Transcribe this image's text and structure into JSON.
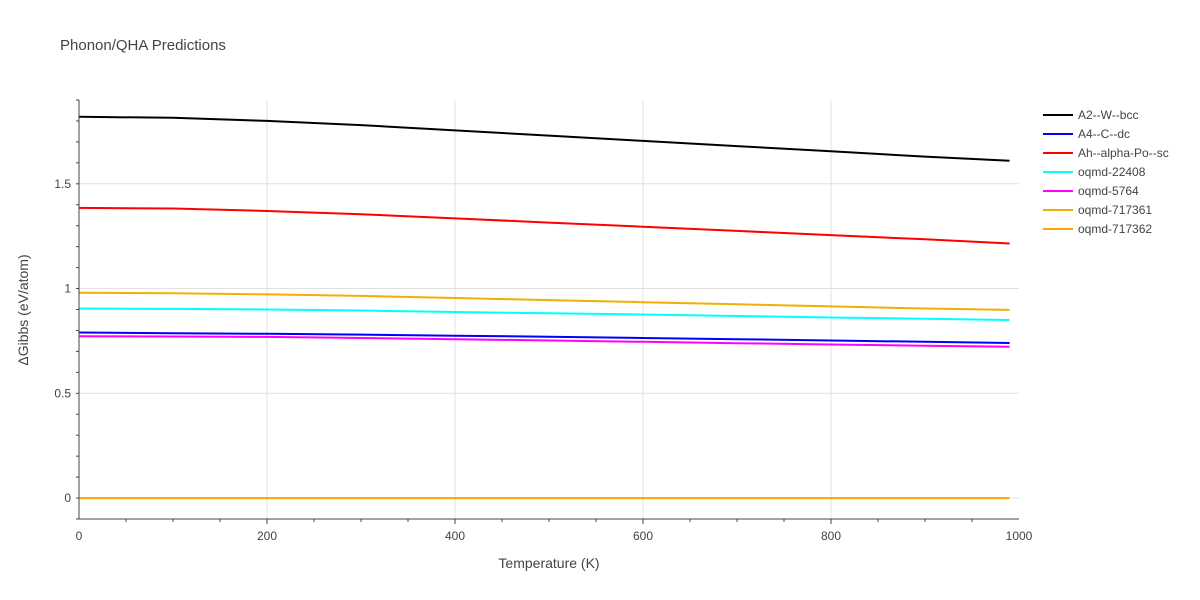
{
  "chart_data": {
    "type": "line",
    "title": "Phonon/QHA Predictions",
    "xlabel": "Temperature (K)",
    "ylabel": "ΔGibbs (eV/atom)",
    "xlim": [
      0,
      1000
    ],
    "ylim": [
      -0.1,
      1.9
    ],
    "xticks": [
      0,
      200,
      400,
      600,
      800,
      1000
    ],
    "yticks": [
      0,
      0.5,
      1,
      1.5
    ],
    "ytick_labels": [
      "0",
      "0.5",
      "1",
      "1.5"
    ],
    "grid": true,
    "legend_position": "top-right",
    "x": [
      0,
      100,
      200,
      300,
      400,
      500,
      600,
      700,
      800,
      900,
      990
    ],
    "series": [
      {
        "name": "A2--W--bcc",
        "color": "#000000",
        "values": [
          1.82,
          1.815,
          1.8,
          1.78,
          1.755,
          1.73,
          1.705,
          1.68,
          1.655,
          1.63,
          1.61
        ]
      },
      {
        "name": "A4--C--dc",
        "color": "#0000ff",
        "values": [
          0.79,
          0.787,
          0.784,
          0.78,
          0.775,
          0.77,
          0.764,
          0.758,
          0.752,
          0.746,
          0.74
        ]
      },
      {
        "name": "Ah--alpha-Po--sc",
        "color": "#ff0000",
        "values": [
          1.385,
          1.382,
          1.37,
          1.355,
          1.335,
          1.315,
          1.295,
          1.275,
          1.255,
          1.235,
          1.215
        ]
      },
      {
        "name": "oqmd-22408",
        "color": "#00ffff",
        "values": [
          0.905,
          0.903,
          0.9,
          0.895,
          0.888,
          0.882,
          0.876,
          0.869,
          0.862,
          0.856,
          0.85
        ]
      },
      {
        "name": "oqmd-5764",
        "color": "#ff00ff",
        "values": [
          0.772,
          0.771,
          0.769,
          0.764,
          0.758,
          0.752,
          0.746,
          0.739,
          0.733,
          0.727,
          0.722
        ]
      },
      {
        "name": "oqmd-717361",
        "color": "#f0b000",
        "values": [
          0.98,
          0.978,
          0.972,
          0.965,
          0.955,
          0.945,
          0.935,
          0.925,
          0.915,
          0.905,
          0.898
        ]
      },
      {
        "name": "oqmd-717362",
        "color": "#ffa500",
        "values": [
          0,
          0,
          0,
          0,
          0,
          0,
          0,
          0,
          0,
          0,
          0
        ]
      }
    ]
  }
}
